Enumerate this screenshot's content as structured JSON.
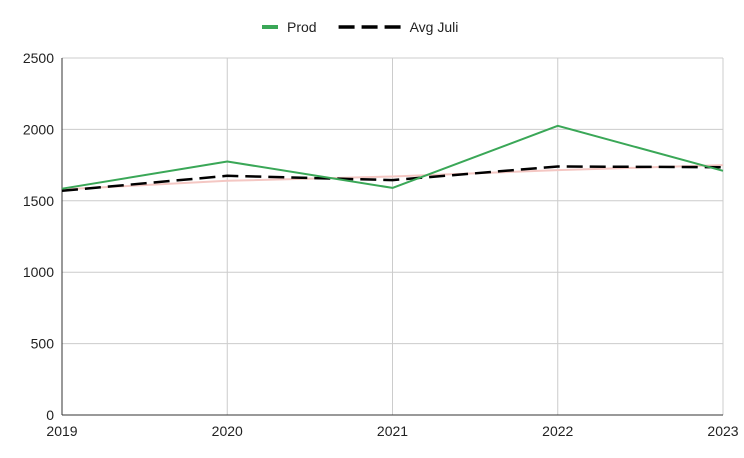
{
  "chart_data": {
    "type": "line",
    "title": "",
    "xlabel": "",
    "ylabel": "",
    "categories": [
      "2019",
      "2020",
      "2021",
      "2022",
      "2023"
    ],
    "ylim": [
      0,
      2500
    ],
    "yticks": [
      "0",
      "500",
      "1000",
      "1500",
      "2000",
      "2500"
    ],
    "grid": true,
    "legend_position": "top",
    "series": [
      {
        "name": "Prod",
        "values": [
          1585,
          1775,
          1590,
          2025,
          1710
        ],
        "color": "#3aa757",
        "style": "solid"
      },
      {
        "name": "Avg Juli",
        "values": [
          1570,
          1675,
          1645,
          1740,
          1735
        ],
        "color": "#000000",
        "style": "dashed"
      },
      {
        "name": "",
        "values": [
          1580,
          1640,
          1670,
          1715,
          1750
        ],
        "color": "#f4c7c3",
        "style": "solid"
      }
    ]
  }
}
